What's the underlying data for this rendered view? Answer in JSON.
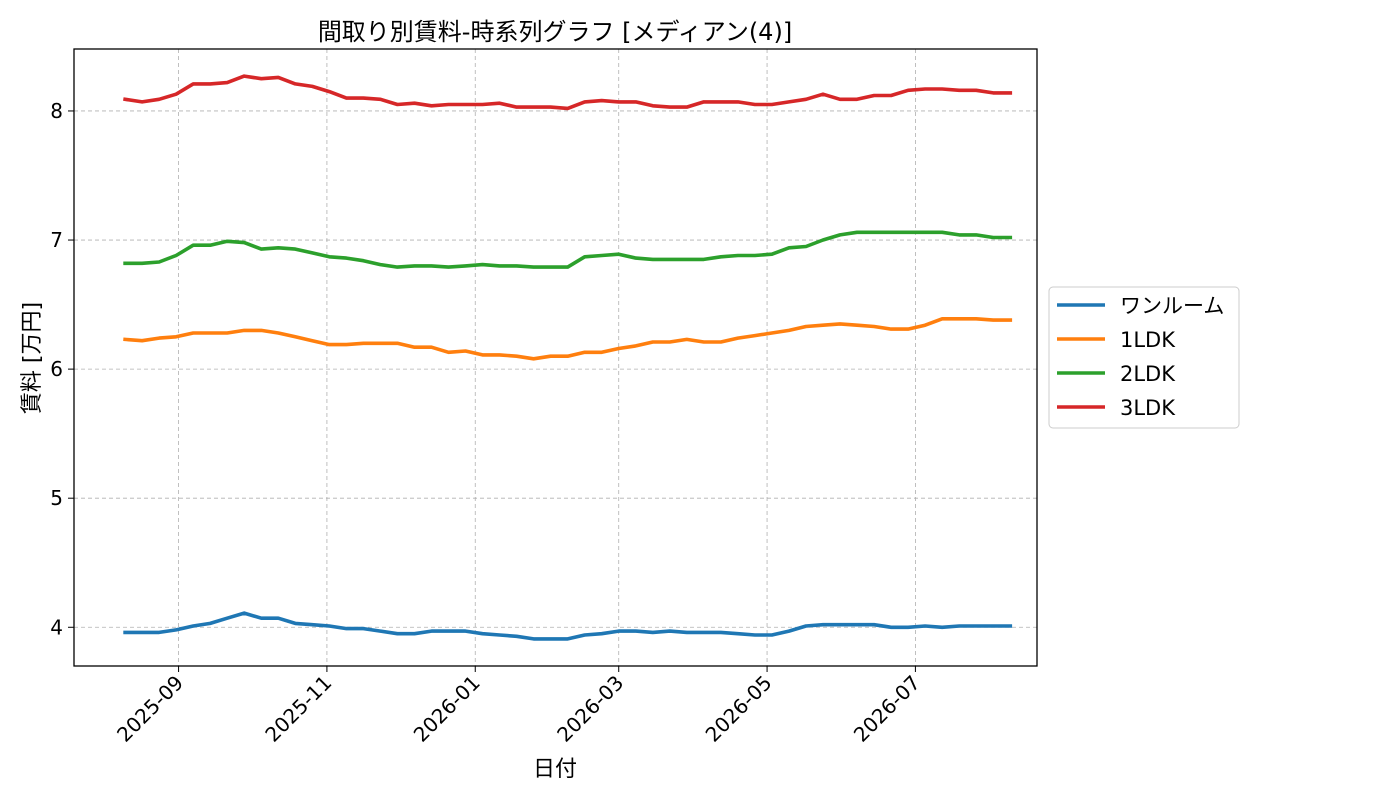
{
  "chart_data": {
    "type": "line",
    "title": "間取り別賃料-時系列グラフ [メディアン(4)]",
    "xlabel": "日付",
    "ylabel": "賃料 [万円]",
    "xlim": [
      "2025-07-20",
      "2026-08-20"
    ],
    "ylim": [
      3.7,
      8.48
    ],
    "x_ticks": [
      "2025-09-01",
      "2025-11-01",
      "2026-01-01",
      "2026-03-01",
      "2026-05-01",
      "2026-07-01"
    ],
    "x_tick_labels": [
      "2025-09",
      "2025-11",
      "2026-01",
      "2026-03",
      "2026-05",
      "2026-07"
    ],
    "y_ticks": [
      4,
      5,
      6,
      7,
      8
    ],
    "grid": true,
    "legend_position": "outside-right",
    "x": [
      "2025-08-10",
      "2025-08-17",
      "2025-08-24",
      "2025-08-31",
      "2025-09-07",
      "2025-09-14",
      "2025-09-21",
      "2025-09-28",
      "2025-10-05",
      "2025-10-12",
      "2025-10-19",
      "2025-10-26",
      "2025-11-02",
      "2025-11-09",
      "2025-11-16",
      "2025-11-23",
      "2025-11-30",
      "2025-12-07",
      "2025-12-14",
      "2025-12-21",
      "2025-12-28",
      "2026-01-04",
      "2026-01-11",
      "2026-01-18",
      "2026-01-25",
      "2026-02-01",
      "2026-02-08",
      "2026-02-15",
      "2026-02-22",
      "2026-03-01",
      "2026-03-08",
      "2026-03-15",
      "2026-03-22",
      "2026-03-29",
      "2026-04-05",
      "2026-04-12",
      "2026-04-19",
      "2026-04-26",
      "2026-05-03",
      "2026-05-10",
      "2026-05-17",
      "2026-05-24",
      "2026-05-31",
      "2026-06-07",
      "2026-06-14",
      "2026-06-21",
      "2026-06-28",
      "2026-07-05",
      "2026-07-12",
      "2026-07-19",
      "2026-07-26",
      "2026-08-02",
      "2026-08-09"
    ],
    "series": [
      {
        "name": "ワンルーム",
        "color": "#1f77b4",
        "values": [
          3.96,
          3.96,
          3.96,
          3.98,
          4.01,
          4.03,
          4.07,
          4.11,
          4.07,
          4.07,
          4.03,
          4.02,
          4.01,
          3.99,
          3.99,
          3.97,
          3.95,
          3.95,
          3.97,
          3.97,
          3.97,
          3.95,
          3.94,
          3.93,
          3.91,
          3.91,
          3.91,
          3.94,
          3.95,
          3.97,
          3.97,
          3.96,
          3.97,
          3.96,
          3.96,
          3.96,
          3.95,
          3.94,
          3.94,
          3.97,
          4.01,
          4.02,
          4.02,
          4.02,
          4.02,
          4.0,
          4.0,
          4.01,
          4.0,
          4.01,
          4.01,
          4.01,
          4.01
        ]
      },
      {
        "name": "1LDK",
        "color": "#ff7f0e",
        "values": [
          6.23,
          6.22,
          6.24,
          6.25,
          6.28,
          6.28,
          6.28,
          6.3,
          6.3,
          6.28,
          6.25,
          6.22,
          6.19,
          6.19,
          6.2,
          6.2,
          6.2,
          6.17,
          6.17,
          6.13,
          6.14,
          6.11,
          6.11,
          6.1,
          6.08,
          6.1,
          6.1,
          6.13,
          6.13,
          6.16,
          6.18,
          6.21,
          6.21,
          6.23,
          6.21,
          6.21,
          6.24,
          6.26,
          6.28,
          6.3,
          6.33,
          6.34,
          6.35,
          6.34,
          6.33,
          6.31,
          6.31,
          6.34,
          6.39,
          6.39,
          6.39,
          6.38,
          6.38
        ]
      },
      {
        "name": "2LDK",
        "color": "#2ca02c",
        "values": [
          6.82,
          6.82,
          6.83,
          6.88,
          6.96,
          6.96,
          6.99,
          6.98,
          6.93,
          6.94,
          6.93,
          6.9,
          6.87,
          6.86,
          6.84,
          6.81,
          6.79,
          6.8,
          6.8,
          6.79,
          6.8,
          6.81,
          6.8,
          6.8,
          6.79,
          6.79,
          6.79,
          6.87,
          6.88,
          6.89,
          6.86,
          6.85,
          6.85,
          6.85,
          6.85,
          6.87,
          6.88,
          6.88,
          6.89,
          6.94,
          6.95,
          7.0,
          7.04,
          7.06,
          7.06,
          7.06,
          7.06,
          7.06,
          7.06,
          7.04,
          7.04,
          7.02,
          7.02
        ]
      },
      {
        "name": "3LDK",
        "color": "#d62728",
        "values": [
          8.09,
          8.07,
          8.09,
          8.13,
          8.21,
          8.21,
          8.22,
          8.27,
          8.25,
          8.26,
          8.21,
          8.19,
          8.15,
          8.1,
          8.1,
          8.09,
          8.05,
          8.06,
          8.04,
          8.05,
          8.05,
          8.05,
          8.06,
          8.03,
          8.03,
          8.03,
          8.02,
          8.07,
          8.08,
          8.07,
          8.07,
          8.04,
          8.03,
          8.03,
          8.07,
          8.07,
          8.07,
          8.05,
          8.05,
          8.07,
          8.09,
          8.13,
          8.09,
          8.09,
          8.12,
          8.12,
          8.16,
          8.17,
          8.17,
          8.16,
          8.16,
          8.14,
          8.14
        ]
      }
    ]
  }
}
